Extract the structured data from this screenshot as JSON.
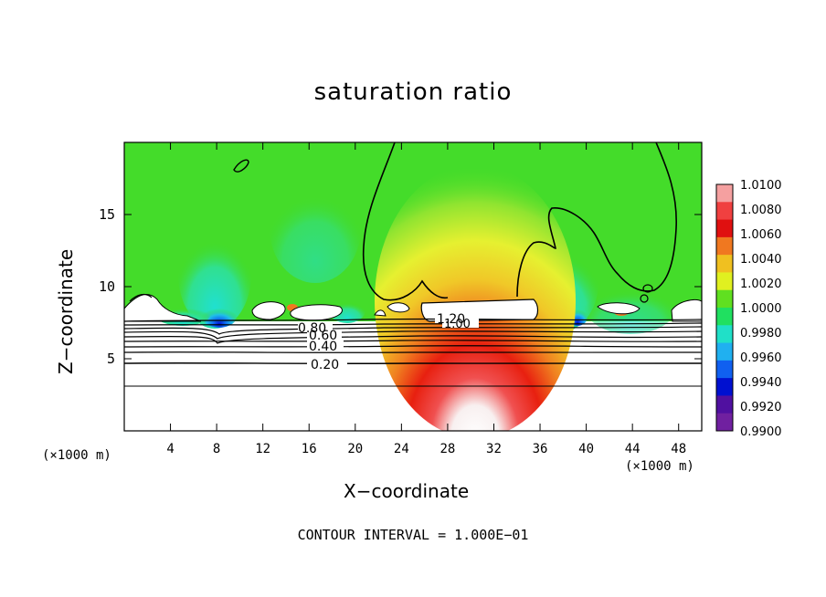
{
  "chart_data": {
    "type": "heatmap",
    "title": "saturation ratio",
    "xlabel": "X−coordinate",
    "ylabel": "Z−coordinate",
    "x_unit_label": "(×1000 m)",
    "xlim": [
      0,
      50
    ],
    "ylim": [
      0,
      20
    ],
    "x_ticks": [
      "4",
      "8",
      "12",
      "16",
      "20",
      "24",
      "28",
      "32",
      "36",
      "40",
      "44",
      "48"
    ],
    "y_ticks": [
      "5",
      "10",
      "15"
    ],
    "colorbar": {
      "range": [
        0.99,
        1.01
      ],
      "labels": [
        "1.0100",
        "1.0080",
        "1.0060",
        "1.0040",
        "1.0020",
        "1.0000",
        "0.9980",
        "0.9960",
        "0.9940",
        "0.9920",
        "0.9900"
      ],
      "colors": [
        "#f5a0a0",
        "#f04040",
        "#e01010",
        "#f07820",
        "#f0c020",
        "#e0f020",
        "#60e020",
        "#20e060",
        "#20e0c8",
        "#20b0f0",
        "#1060f0",
        "#0010d0",
        "#5010a0",
        "#7020a0"
      ]
    },
    "contour_interval_text": "CONTOUR INTERVAL = 1.000E−01",
    "contour_labels": [
      "0.80",
      "0.60",
      "0.40",
      "0.20",
      "1.20",
      "1.00"
    ]
  }
}
